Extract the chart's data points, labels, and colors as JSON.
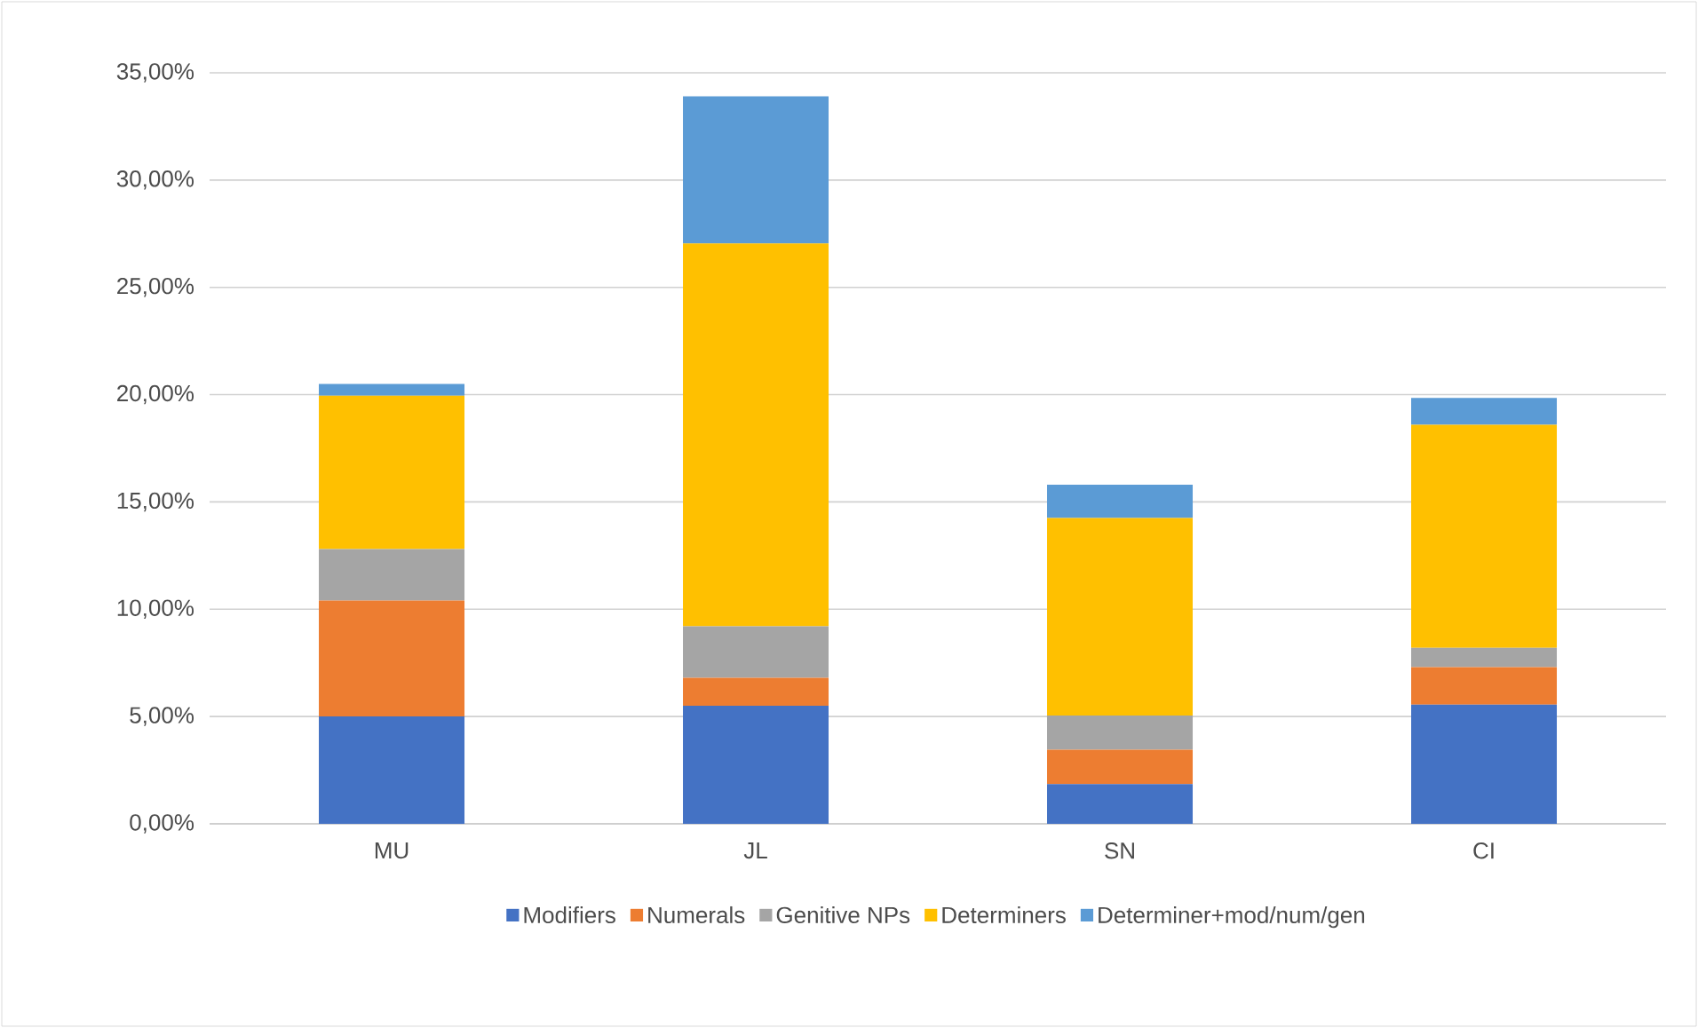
{
  "chart_data": {
    "type": "bar",
    "stacked": true,
    "categories": [
      "MU",
      "JL",
      "SN",
      "CI"
    ],
    "series": [
      {
        "name": "Modifiers",
        "color": "#4472c4",
        "values": [
          5.0,
          5.5,
          1.85,
          5.55
        ]
      },
      {
        "name": "Numerals",
        "color": "#ed7d31",
        "values": [
          5.4,
          1.3,
          1.6,
          1.75
        ]
      },
      {
        "name": "Genitive NPs",
        "color": "#a5a5a5",
        "values": [
          2.4,
          2.4,
          1.6,
          0.9
        ]
      },
      {
        "name": "Determiners",
        "color": "#ffc000",
        "values": [
          7.15,
          17.85,
          9.2,
          10.4
        ]
      },
      {
        "name": "Determiner+mod/num/gen",
        "color": "#5b9bd5",
        "values": [
          0.55,
          6.85,
          1.55,
          1.25
        ]
      }
    ],
    "ylim": [
      0,
      35
    ],
    "yticks": [
      {
        "value": 0,
        "label": "0,00%"
      },
      {
        "value": 5,
        "label": "5,00%"
      },
      {
        "value": 10,
        "label": "10,00%"
      },
      {
        "value": 15,
        "label": "15,00%"
      },
      {
        "value": 20,
        "label": "20,00%"
      },
      {
        "value": 25,
        "label": "25,00%"
      },
      {
        "value": 30,
        "label": "30,00%"
      },
      {
        "value": 35,
        "label": "35,00%"
      }
    ],
    "grid": "y",
    "legend": "bottom"
  }
}
